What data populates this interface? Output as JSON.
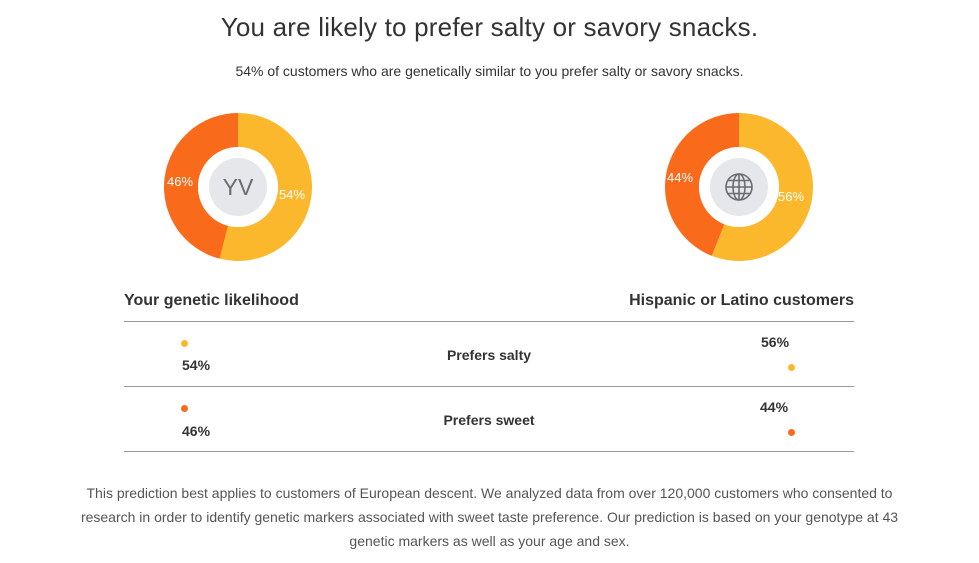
{
  "header": {
    "title": "You are likely to prefer salty or savory snacks.",
    "subtitle": "54% of customers who are genetically similar to you prefer salty or savory snacks."
  },
  "colors": {
    "salty": "#fbb82d",
    "sweet": "#f96b1b",
    "divider": "#9a9a9a",
    "avatar_bg": "#e6e7ea"
  },
  "chart_data": [
    {
      "type": "pie",
      "variant": "donut",
      "title": "Your genetic likelihood",
      "center": {
        "kind": "initials",
        "text": "YV"
      },
      "slices": [
        {
          "label": "Prefers salty",
          "value": 54,
          "display": "54%",
          "color": "#fbb82d"
        },
        {
          "label": "Prefers sweet",
          "value": 46,
          "display": "46%",
          "color": "#f96b1b"
        }
      ]
    },
    {
      "type": "pie",
      "variant": "donut",
      "title": "Hispanic or Latino customers",
      "center": {
        "kind": "icon",
        "icon": "globe-icon"
      },
      "slices": [
        {
          "label": "Prefers salty",
          "value": 56,
          "display": "56%",
          "color": "#fbb82d"
        },
        {
          "label": "Prefers sweet",
          "value": 44,
          "display": "44%",
          "color": "#f96b1b"
        }
      ]
    }
  ],
  "comparison": {
    "left_heading": "Your genetic likelihood",
    "right_heading": "Hispanic or Latino customers",
    "rows": [
      {
        "label": "Prefers salty",
        "left": "54%",
        "right": "56%",
        "color_key": "salty"
      },
      {
        "label": "Prefers sweet",
        "left": "46%",
        "right": "44%",
        "color_key": "sweet"
      }
    ]
  },
  "footnote": {
    "line1": "This prediction best applies to customers of European descent. We analyzed data from over 120,000 customers who consented to",
    "line2": "research in order to identify genetic markers associated with sweet taste preference. Our prediction is based on your genotype at 43",
    "line3": "genetic markers as well as your age and sex."
  }
}
